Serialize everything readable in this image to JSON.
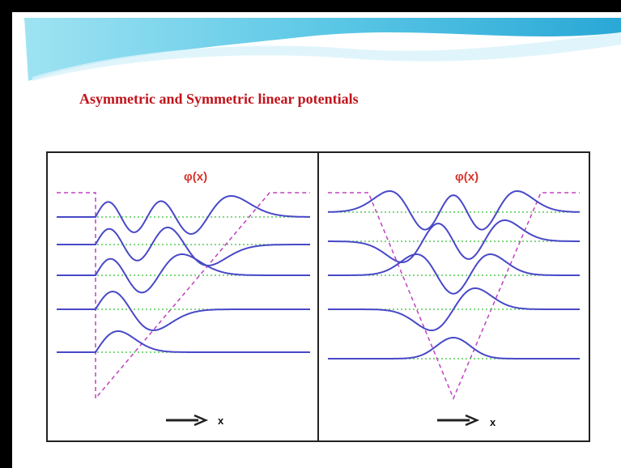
{
  "title": "Asymmetric and Symmetric linear potentials",
  "panels": [
    {
      "label": "φ(x)",
      "axis_label": "x"
    },
    {
      "label": "φ(x)",
      "axis_label": "x"
    }
  ]
}
